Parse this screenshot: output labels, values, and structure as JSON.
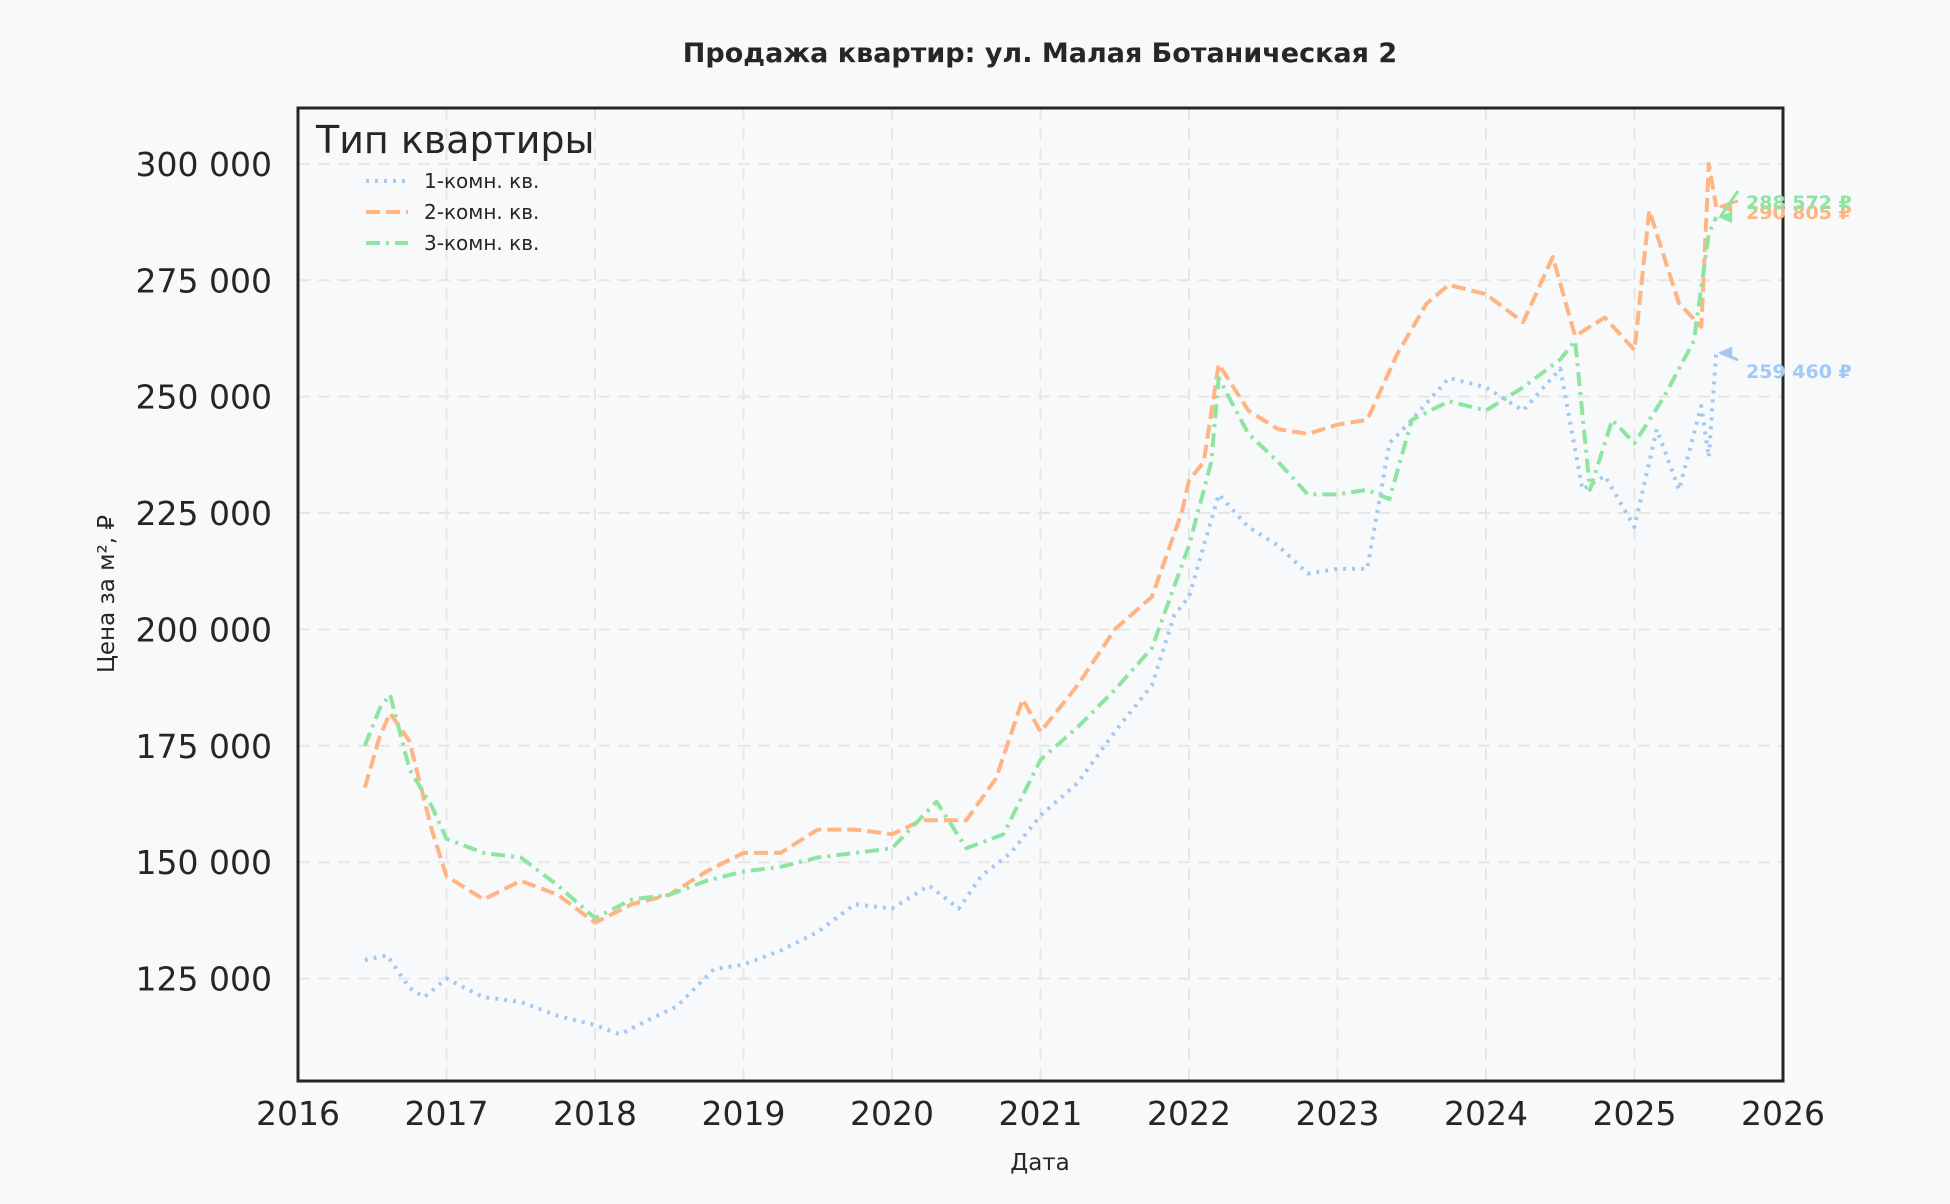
{
  "chart_data": {
    "type": "line",
    "title": "Продажа квартир: ул. Малая Ботаническая 2",
    "xlabel": "Дата",
    "ylabel": "Цена за м², ₽",
    "xlim": [
      2016.0,
      2026.0
    ],
    "ylim": [
      103000,
      312000
    ],
    "x_ticks": [
      "2016",
      "2017",
      "2018",
      "2019",
      "2020",
      "2021",
      "2022",
      "2023",
      "2024",
      "2025",
      "2026"
    ],
    "y_ticks": [
      125000,
      150000,
      175000,
      200000,
      225000,
      250000,
      275000,
      300000
    ],
    "y_tick_labels": [
      "125 000",
      "150 000",
      "175 000",
      "200 000",
      "225 000",
      "250 000",
      "275 000",
      "300 000"
    ],
    "grid": true,
    "legend_title": "Тип квартиры",
    "legend_position": "top-left",
    "series": [
      {
        "name": "1-комн. кв.",
        "color": "#a1c9f4",
        "style": "dotted",
        "x": [
          2016.45,
          2016.6,
          2016.75,
          2016.85,
          2017.0,
          2017.25,
          2017.5,
          2017.75,
          2018.0,
          2018.17,
          2018.35,
          2018.55,
          2018.8,
          2019.0,
          2019.25,
          2019.5,
          2019.75,
          2020.0,
          2020.25,
          2020.45,
          2020.6,
          2020.8,
          2021.0,
          2021.25,
          2021.5,
          2021.75,
          2021.9,
          2022.0,
          2022.2,
          2022.4,
          2022.6,
          2022.8,
          2023.0,
          2023.2,
          2023.35,
          2023.5,
          2023.75,
          2024.0,
          2024.25,
          2024.5,
          2024.65,
          2024.8,
          2025.0,
          2025.15,
          2025.3,
          2025.45,
          2025.5,
          2025.55
        ],
        "values": [
          129000,
          130000,
          123000,
          121000,
          125000,
          121000,
          120000,
          117000,
          115000,
          113000,
          116000,
          119000,
          127000,
          128000,
          131000,
          135000,
          141000,
          140000,
          145000,
          140000,
          147000,
          152000,
          160000,
          167000,
          178000,
          188000,
          203000,
          207000,
          229000,
          222000,
          218000,
          212000,
          213000,
          213000,
          240000,
          245000,
          254000,
          252000,
          247000,
          256000,
          230000,
          233000,
          222000,
          243000,
          230000,
          248000,
          237000,
          259460
        ]
      },
      {
        "name": "2-комн. кв.",
        "color": "#ffb482",
        "style": "dashed",
        "x": [
          2016.45,
          2016.55,
          2016.62,
          2016.75,
          2016.9,
          2017.0,
          2017.25,
          2017.5,
          2017.75,
          2018.0,
          2018.25,
          2018.5,
          2018.75,
          2019.0,
          2019.25,
          2019.5,
          2019.75,
          2020.0,
          2020.2,
          2020.3,
          2020.5,
          2020.7,
          2020.88,
          2021.0,
          2021.25,
          2021.5,
          2021.75,
          2021.95,
          2022.0,
          2022.1,
          2022.2,
          2022.4,
          2022.6,
          2022.8,
          2023.0,
          2023.2,
          2023.4,
          2023.6,
          2023.75,
          2024.0,
          2024.25,
          2024.45,
          2024.6,
          2024.8,
          2025.0,
          2025.1,
          2025.3,
          2025.45,
          2025.5,
          2025.55
        ],
        "values": [
          166000,
          177000,
          182000,
          176000,
          157000,
          147000,
          142000,
          146000,
          143000,
          137000,
          141000,
          143000,
          148000,
          152000,
          152000,
          157000,
          157000,
          156000,
          159000,
          159000,
          159000,
          168000,
          185000,
          178000,
          188000,
          200000,
          207000,
          225000,
          232000,
          236000,
          257000,
          247000,
          243000,
          242000,
          244000,
          245000,
          259000,
          270000,
          274000,
          272000,
          266000,
          280000,
          263000,
          267000,
          260000,
          290000,
          270000,
          265000,
          300000,
          290805
        ]
      },
      {
        "name": "3-комн. кв.",
        "color": "#8de5a1",
        "style": "dashdot",
        "x": [
          2016.45,
          2016.55,
          2016.62,
          2016.75,
          2016.9,
          2017.0,
          2017.25,
          2017.5,
          2017.75,
          2018.0,
          2018.25,
          2018.5,
          2018.75,
          2019.0,
          2019.25,
          2019.5,
          2019.75,
          2020.0,
          2020.3,
          2020.5,
          2020.75,
          2021.0,
          2021.25,
          2021.5,
          2021.75,
          2022.0,
          2022.15,
          2022.2,
          2022.4,
          2022.6,
          2022.8,
          2023.0,
          2023.2,
          2023.35,
          2023.5,
          2023.75,
          2024.0,
          2024.25,
          2024.5,
          2024.6,
          2024.7,
          2024.85,
          2025.0,
          2025.2,
          2025.4,
          2025.5,
          2025.55
        ],
        "values": [
          175000,
          183000,
          186000,
          170000,
          162000,
          155000,
          152000,
          151000,
          145000,
          138000,
          142000,
          143000,
          146000,
          148000,
          149000,
          151000,
          152000,
          153000,
          163000,
          153000,
          156000,
          172000,
          179000,
          187000,
          196000,
          218000,
          236000,
          254000,
          242000,
          236000,
          229000,
          229000,
          230000,
          228000,
          245000,
          249000,
          247000,
          252000,
          258000,
          262000,
          230000,
          245000,
          240000,
          250000,
          262000,
          285000,
          288572
        ]
      }
    ],
    "annotations": [
      "259 460 ₽",
      "290 805 ₽",
      "288 572 ₽"
    ]
  }
}
